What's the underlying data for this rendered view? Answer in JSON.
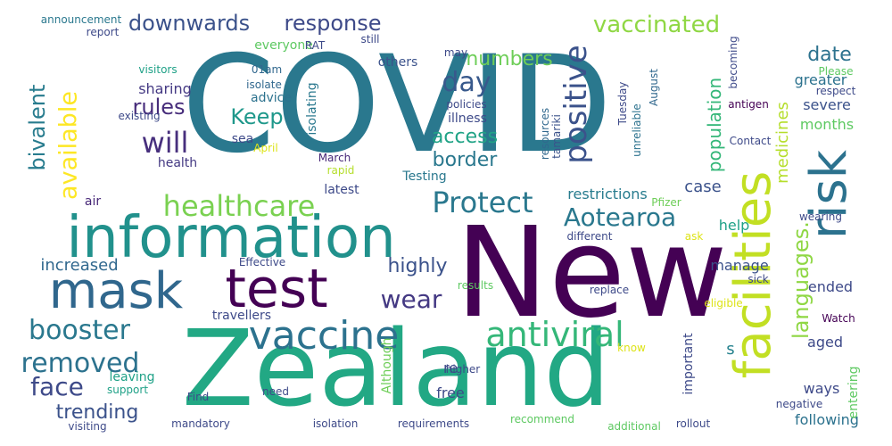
{
  "word_cloud": {
    "background": "#ffffff",
    "words": [
      {
        "key": "covid",
        "text": "COVID",
        "color": "#2a788e"
      },
      {
        "key": "new",
        "text": "New",
        "color": "#440154"
      },
      {
        "key": "zealand",
        "text": "Zealand",
        "color": "#22a884"
      },
      {
        "key": "facilities",
        "text": "facilities",
        "color": "#c2df23"
      },
      {
        "key": "information",
        "text": "information",
        "color": "#21918c"
      },
      {
        "key": "test",
        "text": "test",
        "color": "#440154"
      },
      {
        "key": "mask",
        "text": "mask",
        "color": "#30678d"
      },
      {
        "key": "risk",
        "text": "risk",
        "color": "#2c728e"
      },
      {
        "key": "positive",
        "text": "positive",
        "color": "#3b528b"
      },
      {
        "key": "vaccine",
        "text": "vaccine",
        "color": "#2c728e"
      },
      {
        "key": "antiviral",
        "text": "antiviral",
        "color": "#35b779"
      },
      {
        "key": "protect",
        "text": "Protect",
        "color": "#2a788e"
      },
      {
        "key": "healthcare",
        "text": "healthcare",
        "color": "#7ad151"
      },
      {
        "key": "available",
        "text": "available",
        "color": "#fde725"
      },
      {
        "key": "aotearoa",
        "text": "Aotearoa",
        "color": "#2a788e"
      },
      {
        "key": "languages",
        "text": "languages.",
        "color": "#8fd744"
      },
      {
        "key": "booster",
        "text": "booster",
        "color": "#2a788e"
      },
      {
        "key": "removed",
        "text": "removed",
        "color": "#2c728e"
      },
      {
        "key": "face",
        "text": "face",
        "color": "#3e4a89"
      },
      {
        "key": "will",
        "text": "will",
        "color": "#472f7d"
      },
      {
        "key": "wear",
        "text": "wear",
        "color": "#443983"
      },
      {
        "key": "day",
        "text": "day",
        "color": "#38598c"
      },
      {
        "key": "vaccinated",
        "text": "vaccinated",
        "color": "#8fd744"
      },
      {
        "key": "downwards",
        "text": "downwards",
        "color": "#3b528b"
      },
      {
        "key": "response",
        "text": "response",
        "color": "#3e4a89"
      },
      {
        "key": "keep",
        "text": "Keep",
        "color": "#1f988b"
      },
      {
        "key": "rules",
        "text": "rules",
        "color": "#472d7b"
      },
      {
        "key": "bivalent",
        "text": "bivalent",
        "color": "#287c8e"
      },
      {
        "key": "highly",
        "text": "highly",
        "color": "#3b528b"
      },
      {
        "key": "numbers",
        "text": "numbers",
        "color": "#6ece58"
      },
      {
        "key": "access",
        "text": "access",
        "color": "#20a386"
      },
      {
        "key": "border",
        "text": "border",
        "color": "#2a788e"
      },
      {
        "key": "date",
        "text": "date",
        "color": "#2c728e"
      },
      {
        "key": "trending",
        "text": "trending",
        "color": "#3b528b"
      },
      {
        "key": "increased",
        "text": "increased",
        "color": "#31688e"
      },
      {
        "key": "population",
        "text": "population",
        "color": "#35b779"
      },
      {
        "key": "medicines",
        "text": "medicines",
        "color": "#b5de2b"
      },
      {
        "key": "case",
        "text": "case",
        "color": "#3b528b"
      },
      {
        "key": "s",
        "text": "s",
        "color": "#26828e"
      },
      {
        "key": "sharing",
        "text": "sharing",
        "color": "#443983"
      },
      {
        "key": "greater",
        "text": "greater",
        "color": "#2c728e"
      },
      {
        "key": "severe",
        "text": "severe",
        "color": "#3b528b"
      },
      {
        "key": "months",
        "text": "months",
        "color": "#5ec962"
      },
      {
        "key": "manage",
        "text": "manage",
        "color": "#3b528b"
      },
      {
        "key": "ended",
        "text": "ended",
        "color": "#3e4a89"
      },
      {
        "key": "aged",
        "text": "aged",
        "color": "#3e4a89"
      },
      {
        "key": "ways",
        "text": "ways",
        "color": "#3e4a89"
      },
      {
        "key": "free",
        "text": "free",
        "color": "#3e4a89"
      },
      {
        "key": "re",
        "text": "re",
        "color": "#3e4a89"
      },
      {
        "key": "following",
        "text": "following",
        "color": "#2c728e"
      },
      {
        "key": "restrictions",
        "text": "restrictions",
        "color": "#287c8e"
      },
      {
        "key": "help",
        "text": "help",
        "color": "#1fa187"
      },
      {
        "key": "travellers",
        "text": "travellers",
        "color": "#3e4a89"
      },
      {
        "key": "leaving",
        "text": "leaving",
        "color": "#1fa187"
      },
      {
        "key": "latest",
        "text": "latest",
        "color": "#3e4a89"
      },
      {
        "key": "advice",
        "text": "advice",
        "color": "#2c728e"
      },
      {
        "key": "health",
        "text": "health",
        "color": "#443983"
      },
      {
        "key": "sea",
        "text": "sea",
        "color": "#3e4a89"
      },
      {
        "key": "illness",
        "text": "illness",
        "color": "#3e4a89"
      },
      {
        "key": "isolating",
        "text": "isolating",
        "color": "#2a788e"
      },
      {
        "key": "testing",
        "text": "Testing",
        "color": "#2a788e"
      },
      {
        "key": "others",
        "text": "others",
        "color": "#3b528b"
      },
      {
        "key": "everyone",
        "text": "everyone",
        "color": "#5ec962"
      },
      {
        "key": "air",
        "text": "air",
        "color": "#482878"
      },
      {
        "key": "important",
        "text": "important",
        "color": "#3e4a89"
      },
      {
        "key": "although",
        "text": "Although",
        "color": "#6ece58"
      },
      {
        "key": "entering",
        "text": "entering",
        "color": "#5ec962"
      },
      {
        "key": "announcement",
        "text": "announcement",
        "color": "#2a788e"
      },
      {
        "key": "report",
        "text": "report",
        "color": "#3e4a89"
      },
      {
        "key": "rat",
        "text": "RAT",
        "color": "#3e4a89"
      },
      {
        "key": "still",
        "text": "still",
        "color": "#3e4a89"
      },
      {
        "key": "may",
        "text": "may",
        "color": "#3e4a89"
      },
      {
        "key": "visitors",
        "text": "visitors",
        "color": "#1fa187"
      },
      {
        "key": "existing",
        "text": "existing",
        "color": "#3e4a89"
      },
      {
        "key": "01am",
        "text": "01am",
        "color": "#31688e"
      },
      {
        "key": "isolate",
        "text": "isolate",
        "color": "#31688e"
      },
      {
        "key": "april",
        "text": "April",
        "color": "#dde318"
      },
      {
        "key": "march",
        "text": "March",
        "color": "#482878"
      },
      {
        "key": "rapid",
        "text": "rapid",
        "color": "#b5de2b"
      },
      {
        "key": "policies",
        "text": "policies",
        "color": "#3e4a89"
      },
      {
        "key": "resources",
        "text": "resources",
        "color": "#31688e"
      },
      {
        "key": "tamariki",
        "text": "tamariki",
        "color": "#3b528b"
      },
      {
        "key": "unreliable",
        "text": "unreliable",
        "color": "#2c728e"
      },
      {
        "key": "tuesday",
        "text": "Tuesday",
        "color": "#3e4a89"
      },
      {
        "key": "august",
        "text": "August",
        "color": "#31688e"
      },
      {
        "key": "becoming",
        "text": "becoming",
        "color": "#3e4a89"
      },
      {
        "key": "please",
        "text": "Please",
        "color": "#5ec962"
      },
      {
        "key": "respect",
        "text": "respect",
        "color": "#3e4a89"
      },
      {
        "key": "antigen",
        "text": "antigen",
        "color": "#440154"
      },
      {
        "key": "contact",
        "text": "Contact",
        "color": "#3e4a89"
      },
      {
        "key": "pfizer",
        "text": "Pfizer",
        "color": "#6ece58"
      },
      {
        "key": "wearing",
        "text": "wearing",
        "color": "#3e4a89"
      },
      {
        "key": "different",
        "text": "different",
        "color": "#3e4a89"
      },
      {
        "key": "ask",
        "text": "ask",
        "color": "#dde318"
      },
      {
        "key": "effective",
        "text": "Effective",
        "color": "#3e4a89"
      },
      {
        "key": "results",
        "text": "results",
        "color": "#5ec962"
      },
      {
        "key": "replace",
        "text": "replace",
        "color": "#3e4a89"
      },
      {
        "key": "sick",
        "text": "sick",
        "color": "#3e4a89"
      },
      {
        "key": "eligible",
        "text": "eligible",
        "color": "#dde318"
      },
      {
        "key": "watch",
        "text": "Watch",
        "color": "#440154"
      },
      {
        "key": "know",
        "text": "know",
        "color": "#dde318"
      },
      {
        "key": "higher",
        "text": "higher",
        "color": "#3e4a89"
      },
      {
        "key": "support",
        "text": "support",
        "color": "#1fa187"
      },
      {
        "key": "find",
        "text": "Find",
        "color": "#3e4a89"
      },
      {
        "key": "need",
        "text": "need",
        "color": "#3e4a89"
      },
      {
        "key": "negative",
        "text": "negative",
        "color": "#3e4a89"
      },
      {
        "key": "visiting",
        "text": "visiting",
        "color": "#3e4a89"
      },
      {
        "key": "mandatory",
        "text": "mandatory",
        "color": "#3e4a89"
      },
      {
        "key": "isolation",
        "text": "isolation",
        "color": "#3e4a89"
      },
      {
        "key": "requirements",
        "text": "requirements",
        "color": "#3e4a89"
      },
      {
        "key": "recommend",
        "text": "recommend",
        "color": "#5ec962"
      },
      {
        "key": "additional",
        "text": "additional",
        "color": "#5ec962"
      },
      {
        "key": "rollout",
        "text": "rollout",
        "color": "#3e4a89"
      }
    ]
  }
}
